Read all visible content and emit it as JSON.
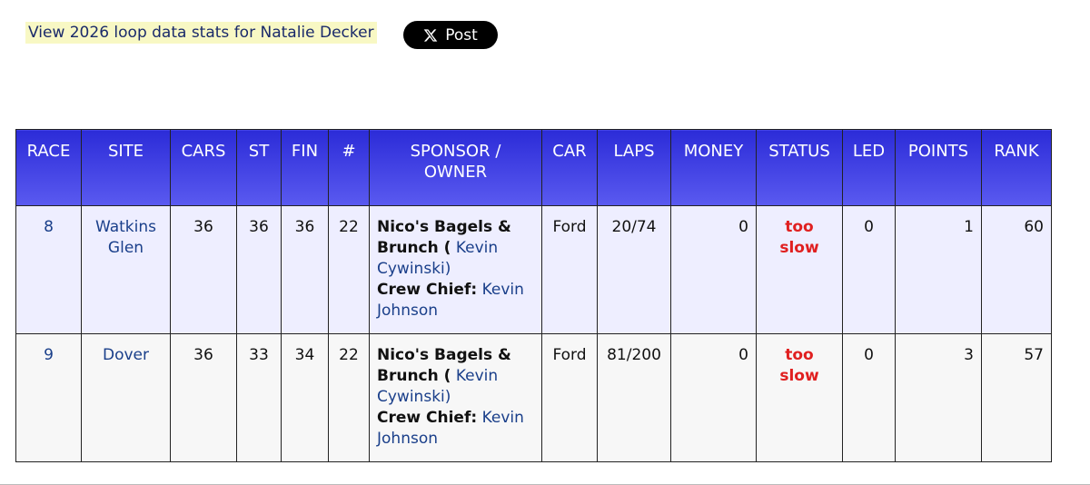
{
  "header": {
    "link": "View 2026 loop data stats for Natalie Decker",
    "button": "Post"
  },
  "table": {
    "columns": [
      "RACE",
      "SITE",
      "CARS",
      "ST",
      "FIN",
      "#",
      "SPONSOR / OWNER",
      "CAR",
      "LAPS",
      "MONEY",
      "STATUS",
      "LED",
      "POINTS",
      "RANK"
    ],
    "rows": [
      {
        "race": 8,
        "site": "Watkins Glen",
        "cars": 36,
        "st": 36,
        "fin": 36,
        "num": 22,
        "sponsor": "Nico's Bagels & Brunch (",
        "owner": "Kevin Cywinski)",
        "crew_chief_label": "Crew Chief:",
        "crew_chief": "Kevin Johnson",
        "car": "Ford",
        "laps": "20/74",
        "money": 0,
        "status": "too slow",
        "led": 0,
        "points": 1,
        "rank": 60
      },
      {
        "race": 9,
        "site": "Dover",
        "cars": 36,
        "st": 33,
        "fin": 34,
        "num": 22,
        "sponsor": "Nico's Bagels & Brunch (",
        "owner": "Kevin Cywinski)",
        "crew_chief_label": "Crew Chief:",
        "crew_chief": "Kevin Johnson",
        "car": "Ford",
        "laps": "81/200",
        "money": 0,
        "status": "too slow",
        "led": 0,
        "points": 3,
        "rank": 57
      }
    ]
  }
}
